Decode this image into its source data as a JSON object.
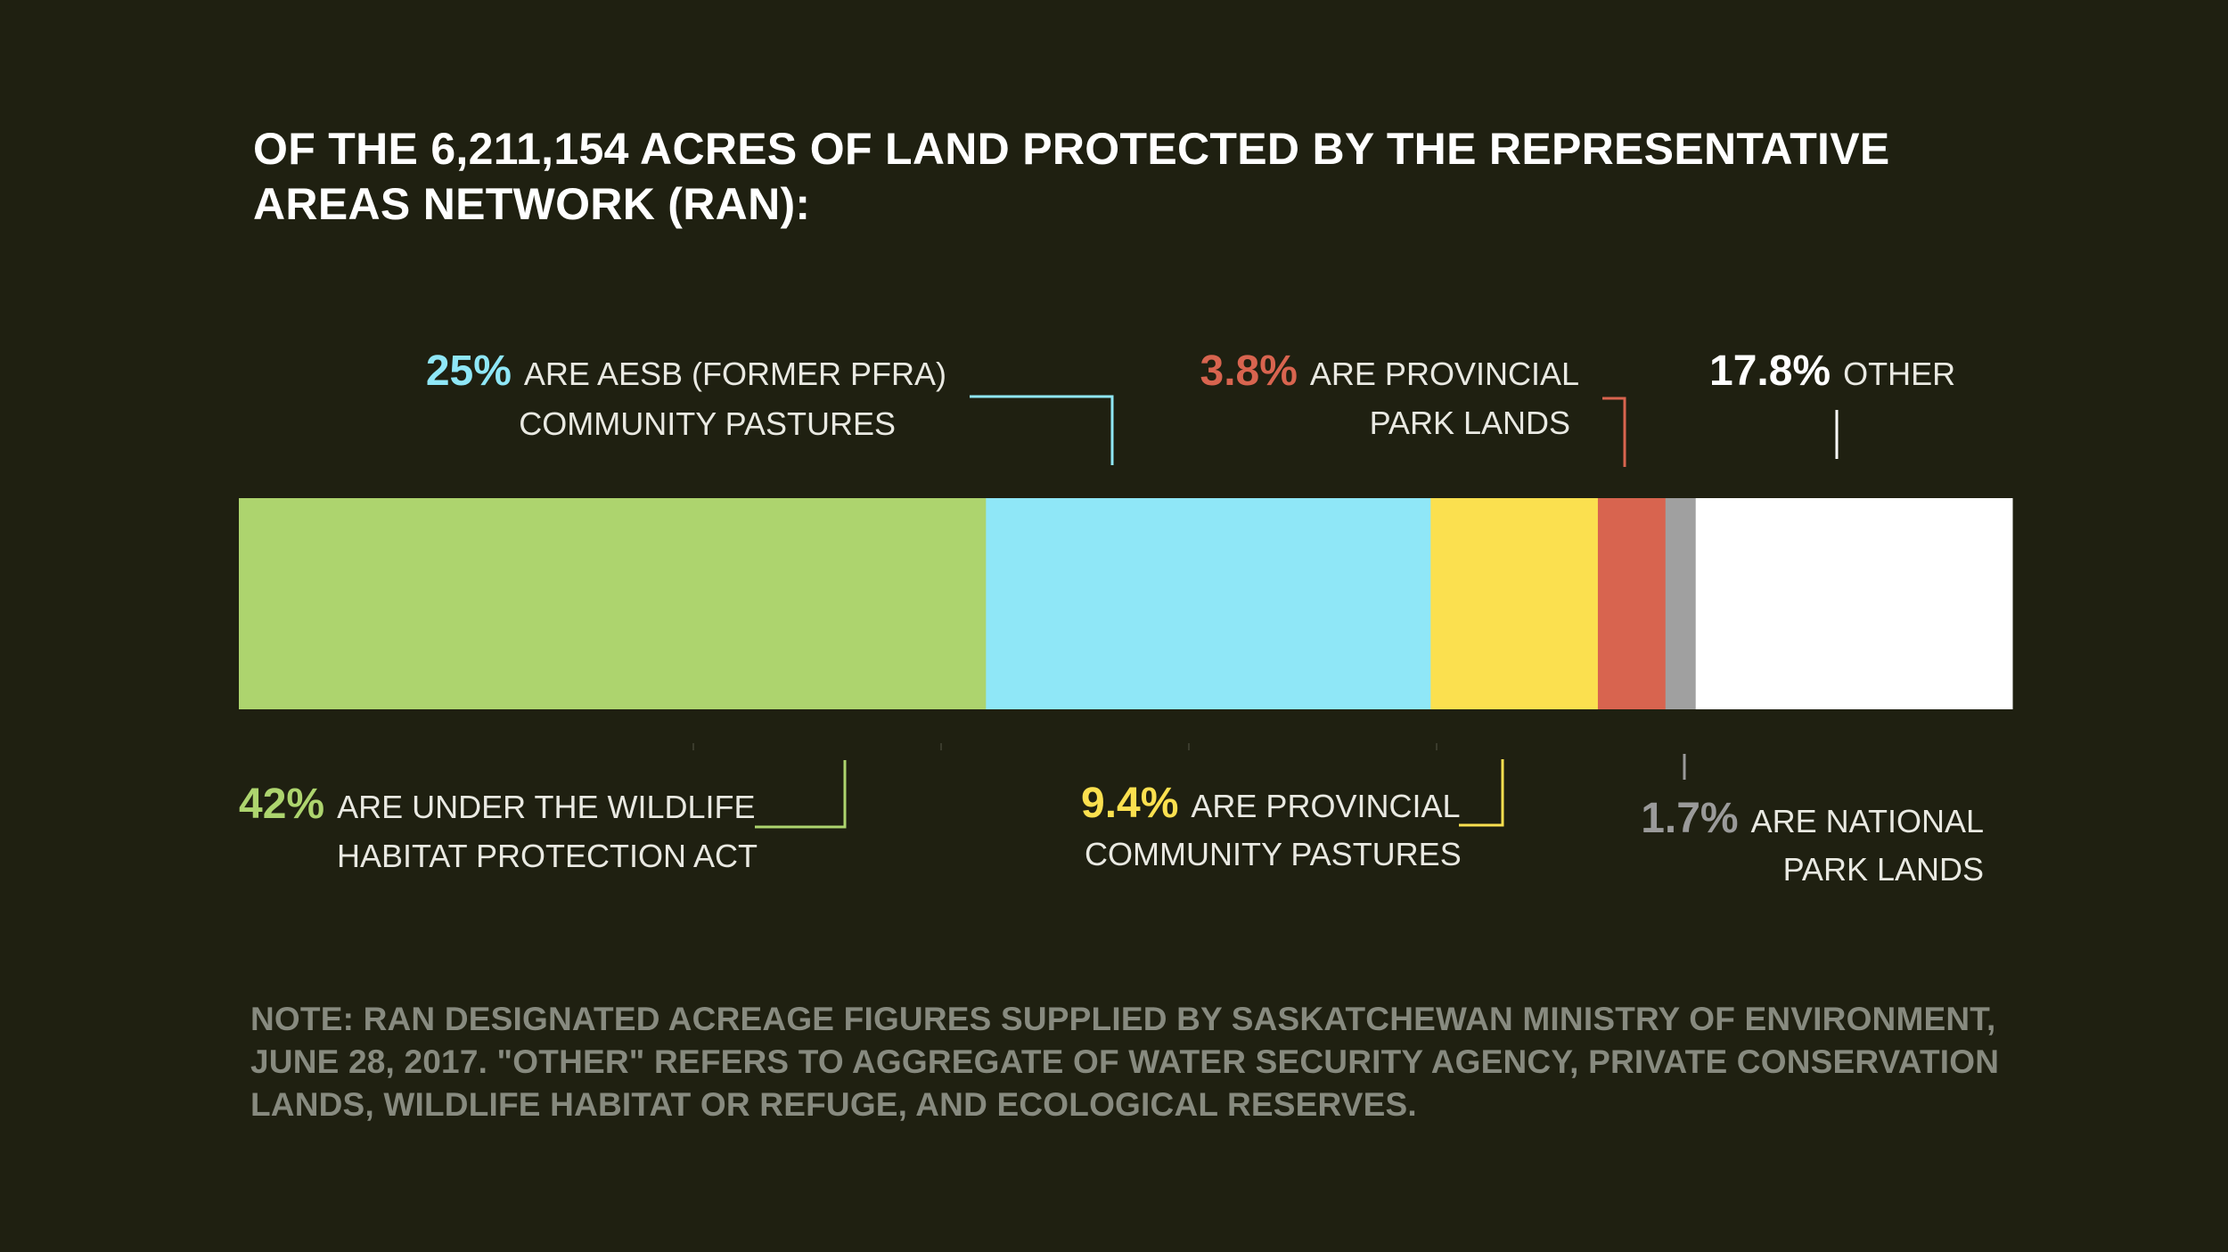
{
  "title": "OF THE 6,211,154 ACRES OF LAND PROTECTED BY THE REPRESENTATIVE AREAS NETWORK (RAN):",
  "note": "NOTE: RAN DESIGNATED ACREAGE FIGURES SUPPLIED  BY SASKATCHEWAN MINISTRY OF ENVIRONMENT, JUNE 28, 2017. \"OTHER\" REFERS TO AGGREGATE OF WATER SECURITY AGENCY, PRIVATE CONSERVATION LANDS, WILDLIFE HABITAT OR REFUGE, AND ECOLOGICAL RESERVES.",
  "chart_data": {
    "type": "stacked-bar-100",
    "title": "OF THE 6,211,154 ACRES OF LAND PROTECTED BY THE REPRESENTATIVE AREAS NETWORK (RAN):",
    "total_acres": 6211154,
    "unit": "%",
    "segments": [
      {
        "key": "wildlife",
        "value": 42,
        "pct_label": "42%",
        "label_lines": [
          "ARE UNDER THE WILDLIFE",
          "HABITAT PROTECTION ACT"
        ],
        "color": "#add46e"
      },
      {
        "key": "aesb",
        "value": 25,
        "pct_label": "25%",
        "label_lines": [
          "ARE AESB (FORMER PFRA)",
          "COMMUNITY PASTURES"
        ],
        "color": "#8fe7f7"
      },
      {
        "key": "prov-pastures",
        "value": 9.4,
        "pct_label": "9.4%",
        "label_lines": [
          "ARE PROVINCIAL",
          "COMMUNITY PASTURES"
        ],
        "color": "#fbe04f"
      },
      {
        "key": "prov-park",
        "value": 3.8,
        "pct_label": "3.8%",
        "label_lines": [
          "ARE PROVINCIAL",
          "PARK LANDS"
        ],
        "color": "#d8644f"
      },
      {
        "key": "national-park",
        "value": 1.7,
        "pct_label": "1.7%",
        "label_lines": [
          "ARE NATIONAL",
          "PARK LANDS"
        ],
        "color": "#a0a0a0"
      },
      {
        "key": "other",
        "value": 17.8,
        "pct_label": "17.8%",
        "label_lines": [
          "OTHER"
        ],
        "color": "#ffffff"
      }
    ]
  }
}
